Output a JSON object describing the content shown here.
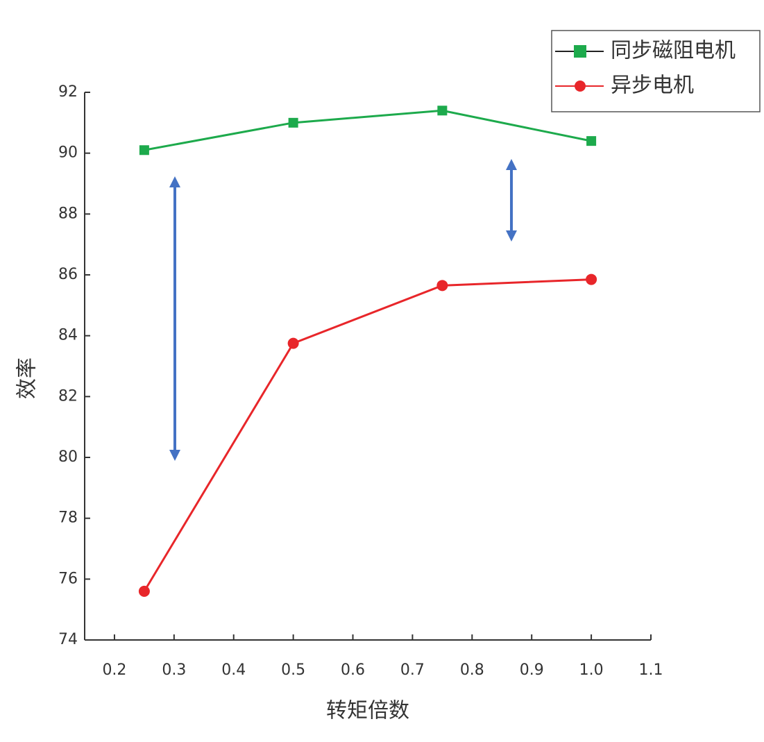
{
  "chart_data": {
    "type": "line",
    "x": [
      0.25,
      0.5,
      0.75,
      1.0
    ],
    "series": [
      {
        "name": "同步磁阻电机",
        "color": "#1daa4c",
        "marker": "square",
        "values": [
          90.1,
          91.0,
          91.4,
          90.4
        ]
      },
      {
        "name": "异步电机",
        "color": "#e8262a",
        "marker": "circle",
        "values": [
          75.6,
          83.75,
          85.65,
          85.85
        ]
      }
    ],
    "xlabel": "转矩倍数",
    "ylabel": "效率",
    "xlim": [
      0.15,
      1.1
    ],
    "ylim": [
      74,
      92
    ],
    "xticks": [
      0.2,
      0.3,
      0.4,
      0.5,
      0.6,
      0.7,
      0.8,
      0.9,
      {
        "value": 1.0,
        "label": "1.0"
      },
      1.1
    ],
    "yticks": [
      74,
      76,
      78,
      80,
      82,
      84,
      86,
      88,
      90,
      92
    ],
    "legend": "upper right",
    "grid": false
  }
}
